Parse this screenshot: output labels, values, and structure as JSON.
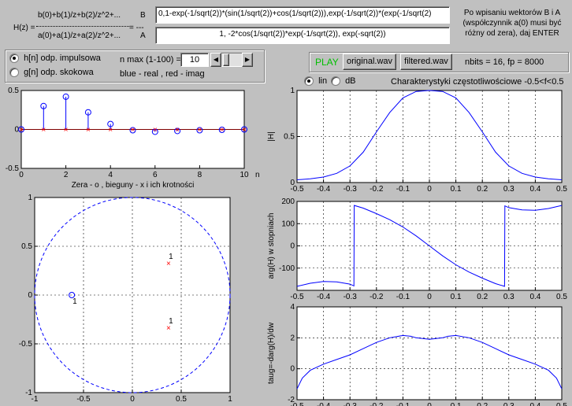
{
  "formula": {
    "hz_label": "H(z) =",
    "numerator": "b(0)+b(1)/z+b(2)/z^2+...",
    "denominator": "a(0)+a(1)/z+a(2)/z^2+...",
    "eq": "= ---",
    "b_label": "B",
    "a_label": "A",
    "b_value": "0,1-exp(-1/sqrt(2))*(sin(1/sqrt(2))+cos(1/sqrt(2))),exp(-1/sqrt(2))*(exp(-1/sqrt(2)",
    "a_value": "1, -2*cos(1/sqrt(2))*exp(-1/sqrt(2)), exp(-sqrt(2))"
  },
  "hint": {
    "line1": "Po wpisaniu wektorów B i A",
    "line2": "(współczynnik a(0) musi być",
    "line3": "różny od zera), daj ENTER"
  },
  "response": {
    "h_label": "h[n] odp. impulsowa",
    "g_label": "g[n] odp. skokowa",
    "selected": "h",
    "nmax_label": "n max (1-100) =",
    "nmax_value": "10",
    "color_note": "blue - real , red - imag"
  },
  "audio": {
    "play_label": "PLAY",
    "original_label": "original.wav",
    "filtered_label": "filtered.wav",
    "info": "nbits = 16,  fp = 8000"
  },
  "freq": {
    "lin_label": "lin",
    "db_label": "dB",
    "selected": "lin",
    "title": "Charakterystyki częstotliwościowe -0.5<f<0.5"
  },
  "colors": {
    "blue": "#0000ff",
    "red": "#ff0000",
    "play_green": "#00c000"
  },
  "chart_data": [
    {
      "type": "stem",
      "name": "impulse-response",
      "x": [
        0,
        1,
        2,
        3,
        4,
        5,
        6,
        7,
        8,
        9,
        10
      ],
      "series": [
        {
          "name": "real",
          "color": "#0000ff",
          "values": [
            0,
            0.3,
            0.42,
            0.22,
            0.07,
            -0.01,
            -0.03,
            -0.02,
            -0.01,
            -0.005,
            0
          ]
        },
        {
          "name": "imag",
          "color": "#ff0000",
          "values": [
            0,
            0,
            0,
            0,
            0,
            0,
            0,
            0,
            0,
            0,
            0
          ]
        }
      ],
      "xlim": [
        0,
        10
      ],
      "ylim": [
        -0.5,
        0.5
      ],
      "xticks": [
        0,
        2,
        4,
        6,
        8,
        10
      ],
      "yticks": [
        -0.5,
        0,
        0.5
      ],
      "xticklabels": [
        "0",
        "2",
        "4",
        "6",
        "8",
        "10"
      ],
      "yticklabels": [
        "-0.5",
        "0",
        "0.5"
      ],
      "xlabel": "n",
      "title": "Zera - o , bieguny - x  i ich krotności"
    },
    {
      "type": "pole-zero",
      "name": "pole-zero",
      "xlim": [
        -1,
        1
      ],
      "ylim": [
        -1,
        1
      ],
      "xticks": [
        -1,
        -0.5,
        0,
        0.5,
        1
      ],
      "yticks": [
        -1,
        -0.5,
        0,
        0.5,
        1
      ],
      "xticklabels": [
        "-1",
        "-0.5",
        "0",
        "0.5",
        "1"
      ],
      "yticklabels": [
        "-1",
        "-0.5",
        "0",
        "0.5",
        "1"
      ],
      "zeros": [
        {
          "re": -0.62,
          "im": 0,
          "mult": "1"
        }
      ],
      "poles": [
        {
          "re": 0.37,
          "im": 0.33,
          "mult": "1"
        },
        {
          "re": 0.37,
          "im": -0.33,
          "mult": "1"
        }
      ]
    },
    {
      "type": "line",
      "name": "magnitude",
      "x": [
        -0.5,
        -0.45,
        -0.4,
        -0.35,
        -0.3,
        -0.25,
        -0.2,
        -0.15,
        -0.1,
        -0.05,
        0,
        0.05,
        0.1,
        0.15,
        0.2,
        0.25,
        0.3,
        0.35,
        0.4,
        0.45,
        0.5
      ],
      "values": [
        0.03,
        0.04,
        0.06,
        0.1,
        0.18,
        0.33,
        0.55,
        0.76,
        0.92,
        0.99,
        1.0,
        0.99,
        0.92,
        0.76,
        0.55,
        0.33,
        0.18,
        0.1,
        0.06,
        0.04,
        0.03
      ],
      "xlim": [
        -0.5,
        0.5
      ],
      "ylim": [
        0,
        1
      ],
      "xticks": [
        -0.5,
        -0.4,
        -0.3,
        -0.2,
        -0.1,
        0,
        0.1,
        0.2,
        0.3,
        0.4,
        0.5
      ],
      "xticklabels": [
        "-0.5",
        "-0.4",
        "-0.3",
        "-0.2",
        "-0.1",
        "0",
        "0.1",
        "0.2",
        "0.3",
        "0.4",
        "0.5"
      ],
      "yticks": [
        0,
        0.5,
        1
      ],
      "yticklabels": [
        "0",
        "0.5",
        "1"
      ],
      "ylabel": "|H|"
    },
    {
      "type": "line",
      "name": "phase",
      "x": [
        -0.5,
        -0.45,
        -0.4,
        -0.35,
        -0.3,
        -0.285,
        -0.284,
        -0.25,
        -0.2,
        -0.15,
        -0.1,
        -0.05,
        0,
        0.05,
        0.1,
        0.15,
        0.2,
        0.25,
        0.284,
        0.285,
        0.3,
        0.35,
        0.4,
        0.45,
        0.5
      ],
      "values": [
        -182,
        -168,
        -160,
        -162,
        -172,
        -180,
        182,
        170,
        145,
        118,
        85,
        45,
        0,
        -45,
        -85,
        -118,
        -145,
        -170,
        -182,
        180,
        172,
        162,
        160,
        168,
        182
      ],
      "xlim": [
        -0.5,
        0.5
      ],
      "ylim": [
        -200,
        200
      ],
      "xticks": [
        -0.5,
        -0.4,
        -0.3,
        -0.2,
        -0.1,
        0,
        0.1,
        0.2,
        0.3,
        0.4,
        0.5
      ],
      "xticklabels": [
        "-0.5",
        "-0.4",
        "-0.3",
        "-0.2",
        "-0.1",
        "0",
        "0.1",
        "0.2",
        "0.3",
        "0.4",
        "0.5"
      ],
      "yticks": [
        -200,
        -100,
        0,
        100,
        200
      ],
      "yticklabels": [
        "",
        "-100",
        "0",
        "100",
        "200"
      ],
      "ylabel": "arg(H) w stopniach"
    },
    {
      "type": "line",
      "name": "group-delay",
      "x": [
        -0.5,
        -0.48,
        -0.45,
        -0.4,
        -0.35,
        -0.3,
        -0.25,
        -0.2,
        -0.15,
        -0.1,
        -0.07,
        -0.05,
        0,
        0.05,
        0.07,
        0.1,
        0.15,
        0.2,
        0.25,
        0.3,
        0.35,
        0.4,
        0.45,
        0.48,
        0.5
      ],
      "values": [
        -1.3,
        -0.6,
        -0.1,
        0.3,
        0.6,
        0.9,
        1.3,
        1.7,
        2.0,
        2.15,
        2.1,
        2.0,
        1.9,
        2.0,
        2.1,
        2.15,
        2.0,
        1.7,
        1.3,
        0.9,
        0.6,
        0.3,
        -0.1,
        -0.6,
        -1.3
      ],
      "xlim": [
        -0.5,
        0.5
      ],
      "ylim": [
        -2,
        4
      ],
      "xticks": [
        -0.5,
        -0.4,
        -0.3,
        -0.2,
        -0.1,
        0,
        0.1,
        0.2,
        0.3,
        0.4,
        0.5
      ],
      "xticklabels": [
        "-0.5",
        "-0.4",
        "-0.3",
        "-0.2",
        "-0.1",
        "0",
        "0.1",
        "0.2",
        "0.3",
        "0.4",
        "0.5"
      ],
      "yticks": [
        -2,
        0,
        2,
        4
      ],
      "yticklabels": [
        "-2",
        "0",
        "2",
        "4"
      ],
      "ylabel": "taug=-darg(H)/dw"
    }
  ]
}
